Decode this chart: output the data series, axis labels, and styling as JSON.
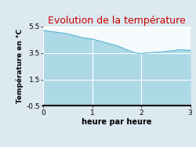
{
  "title": "Evolution de la température",
  "xlabel": "heure par heure",
  "ylabel": "Température en °C",
  "x": [
    0,
    0.1,
    0.2,
    0.3,
    0.4,
    0.5,
    0.6,
    0.7,
    0.8,
    0.9,
    1.0,
    1.1,
    1.2,
    1.3,
    1.4,
    1.5,
    1.6,
    1.7,
    1.8,
    1.9,
    2.0,
    2.1,
    2.2,
    2.3,
    2.4,
    2.5,
    2.6,
    2.7,
    2.8,
    2.9,
    3.0
  ],
  "y": [
    5.2,
    5.15,
    5.1,
    5.05,
    5.0,
    4.95,
    4.85,
    4.75,
    4.65,
    4.6,
    4.55,
    4.45,
    4.35,
    4.25,
    4.15,
    4.05,
    3.9,
    3.75,
    3.6,
    3.5,
    3.45,
    3.48,
    3.52,
    3.55,
    3.57,
    3.6,
    3.65,
    3.7,
    3.75,
    3.72,
    3.7
  ],
  "ylim": [
    -0.5,
    5.5
  ],
  "xlim": [
    0,
    3
  ],
  "yticks": [
    -0.5,
    1.5,
    3.5,
    5.5
  ],
  "xticks": [
    0,
    1,
    2,
    3
  ],
  "fill_color": "#add8e6",
  "line_color": "#5bb8d4",
  "title_color": "#cc0000",
  "bg_color": "#dce9f0",
  "plot_bg_color": "#f5fafc",
  "grid_color": "#ffffff",
  "title_fontsize": 9,
  "label_fontsize": 7,
  "tick_fontsize": 6.5
}
